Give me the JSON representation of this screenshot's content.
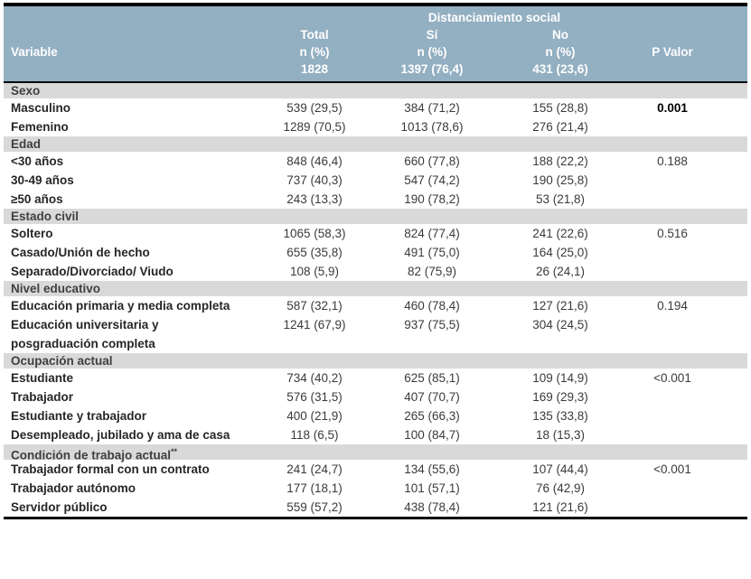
{
  "table": {
    "header": {
      "span_label": "Distanciamiento social",
      "variable_label": "Variable",
      "p_label": "P Valor",
      "cols": [
        {
          "title": "Total",
          "sub": "n (%)",
          "count": "1828"
        },
        {
          "title": "Sí",
          "sub": "n (%)",
          "count": "1397 (76,4)"
        },
        {
          "title": "No",
          "sub": "n (%)",
          "count": "431 (23,6)"
        }
      ]
    },
    "colors": {
      "header_bg": "#93AFC2",
      "section_bg": "#D9D9D9",
      "border": "#000000"
    },
    "sections": [
      {
        "title": "Sexo",
        "title_sup": "",
        "rows": [
          {
            "label": "Masculino",
            "total": "539 (29,5)",
            "si": "384 (71,2)",
            "no": "155 (28,8)",
            "p": "0.001",
            "p_bold": true
          },
          {
            "label": "Femenino",
            "total": "1289 (70,5)",
            "si": "1013 (78,6)",
            "no": "276 (21,4)",
            "p": "",
            "p_bold": false
          }
        ]
      },
      {
        "title": "Edad",
        "title_sup": "",
        "rows": [
          {
            "label": "<30 años",
            "total": "848 (46,4)",
            "si": "660 (77,8)",
            "no": "188 (22,2)",
            "p": "0.188",
            "p_bold": false
          },
          {
            "label": "30-49 años",
            "total": "737 (40,3)",
            "si": "547 (74,2)",
            "no": "190 (25,8)",
            "p": "",
            "p_bold": false
          },
          {
            "label": "≥50 años",
            "total": "243 (13,3)",
            "si": "190 (78,2)",
            "no": "53 (21,8)",
            "p": "",
            "p_bold": false
          }
        ]
      },
      {
        "title": "Estado civil",
        "title_sup": "",
        "rows": [
          {
            "label": "Soltero",
            "total": "1065 (58,3)",
            "si": "824 (77,4)",
            "no": "241 (22,6)",
            "p": "0.516",
            "p_bold": false
          },
          {
            "label": "Casado/Unión de hecho",
            "total": "655 (35,8)",
            "si": "491 (75,0)",
            "no": "164 (25,0)",
            "p": "",
            "p_bold": false
          },
          {
            "label": "Separado/Divorciado/ Viudo",
            "total": "108 (5,9)",
            "si": "82 (75,9)",
            "no": "26 (24,1)",
            "p": "",
            "p_bold": false
          }
        ]
      },
      {
        "title": "Nivel educativo",
        "title_sup": "",
        "rows": [
          {
            "label": "Educación primaria y media completa",
            "total": "587 (32,1)",
            "si": "460 (78,4)",
            "no": "127 (21,6)",
            "p": "0.194",
            "p_bold": false
          },
          {
            "label": "Educación universitaria y posgraduación completa",
            "total": "1241 (67,9)",
            "si": "937 (75,5)",
            "no": "304 (24,5)",
            "p": "",
            "p_bold": false
          }
        ]
      },
      {
        "title": "Ocupación actual",
        "title_sup": "",
        "rows": [
          {
            "label": "Estudiante",
            "total": "734 (40,2)",
            "si": "625 (85,1)",
            "no": "109 (14,9)",
            "p": "<0.001",
            "p_bold": false
          },
          {
            "label": "Trabajador",
            "total": "576 (31,5)",
            "si": "407 (70,7)",
            "no": "169 (29,3)",
            "p": "",
            "p_bold": false
          },
          {
            "label": "Estudiante y trabajador",
            "total": "400 (21,9)",
            "si": "265 (66,3)",
            "no": "135 (33,8)",
            "p": "",
            "p_bold": false
          },
          {
            "label": "Desempleado, jubilado y ama de casa",
            "total": "118 (6,5)",
            "si": "100 (84,7)",
            "no": "18 (15,3)",
            "p": "",
            "p_bold": false
          }
        ]
      },
      {
        "title": "Condición de trabajo actual",
        "title_sup": "**",
        "rows": [
          {
            "label": "Trabajador formal con un contrato",
            "total": "241 (24,7)",
            "si": "134 (55,6)",
            "no": "107 (44,4)",
            "p": "<0.001",
            "p_bold": false
          },
          {
            "label": "Trabajador autónomo",
            "total": "177 (18,1)",
            "si": "101 (57,1)",
            "no": "76 (42,9)",
            "p": "",
            "p_bold": false
          },
          {
            "label": "Servidor público",
            "total": "559 (57,2)",
            "si": "438 (78,4)",
            "no": "121 (21,6)",
            "p": "",
            "p_bold": false
          }
        ]
      }
    ]
  }
}
